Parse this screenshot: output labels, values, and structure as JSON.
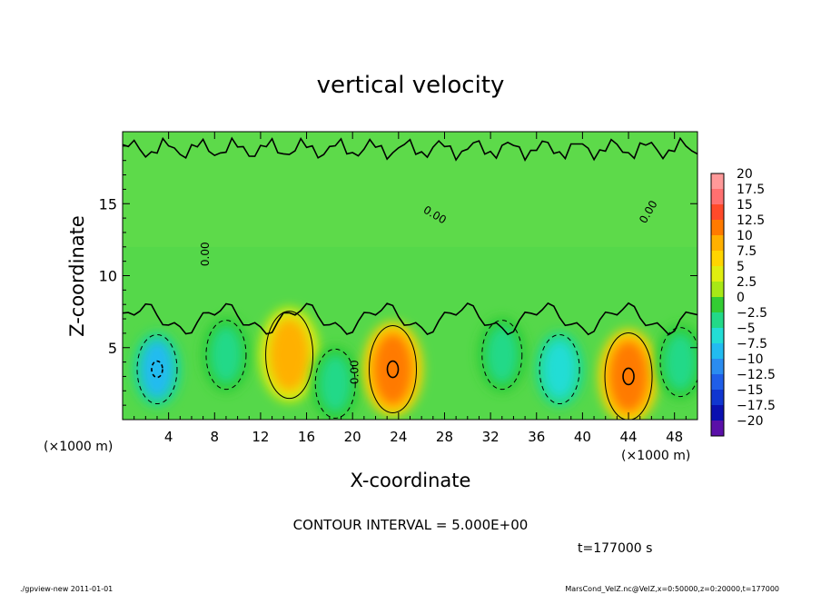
{
  "chart_data": {
    "type": "heatmap",
    "title": "vertical velocity",
    "xlabel": "X-coordinate",
    "ylabel": "Z-coordinate",
    "x_unit_label": "(×1000 m)",
    "x_ticks": [
      4,
      8,
      12,
      16,
      20,
      24,
      28,
      32,
      36,
      40,
      44,
      48
    ],
    "y_ticks": [
      5,
      10,
      15
    ],
    "xlim": [
      0,
      50
    ],
    "ylim": [
      0,
      20
    ],
    "colorbar_levels": [
      "20",
      "17.5",
      "15",
      "12.5",
      "10",
      "7.5",
      "5",
      "2.5",
      "0",
      "-2.5",
      "-5",
      "-7.5",
      "-10",
      "-12.5",
      "-15",
      "-17.5",
      "-20"
    ],
    "colorbar_colors": [
      "#ff9999",
      "#ff7070",
      "#ff4a2a",
      "#ff7a00",
      "#ffb000",
      "#ffd500",
      "#e0ee10",
      "#a8e816",
      "#33cc33",
      "#22d988",
      "#22ddd5",
      "#22bbf0",
      "#2a8cf0",
      "#1f5ee8",
      "#1036d0",
      "#0a10b0",
      "#5a10a8"
    ],
    "contour_label": "0.00",
    "contour_interval_text": "CONTOUR INTERVAL = 5.000E+00",
    "time_text": "t=177000 s",
    "features": [
      {
        "x": 3,
        "z": 3.5,
        "w": -10,
        "sign": "negative"
      },
      {
        "x": 9,
        "z": 4.5,
        "w": -5,
        "sign": "negative"
      },
      {
        "x": 14.5,
        "z": 4.5,
        "w": 7.5,
        "sign": "positive"
      },
      {
        "x": 18.5,
        "z": 2.5,
        "w": -5,
        "sign": "negative"
      },
      {
        "x": 23.5,
        "z": 3.5,
        "w": 10,
        "sign": "positive"
      },
      {
        "x": 33,
        "z": 4.5,
        "w": -5,
        "sign": "negative"
      },
      {
        "x": 38,
        "z": 3.5,
        "w": -7.5,
        "sign": "negative"
      },
      {
        "x": 44,
        "z": 3,
        "w": 10,
        "sign": "positive"
      },
      {
        "x": 48.5,
        "z": 4,
        "w": -5,
        "sign": "negative"
      }
    ]
  },
  "footer": {
    "left": "./gpview-new  2011-01-01",
    "right": "MarsCond_VelZ.nc@VelZ,x=0:50000,z=0:20000,t=177000"
  }
}
